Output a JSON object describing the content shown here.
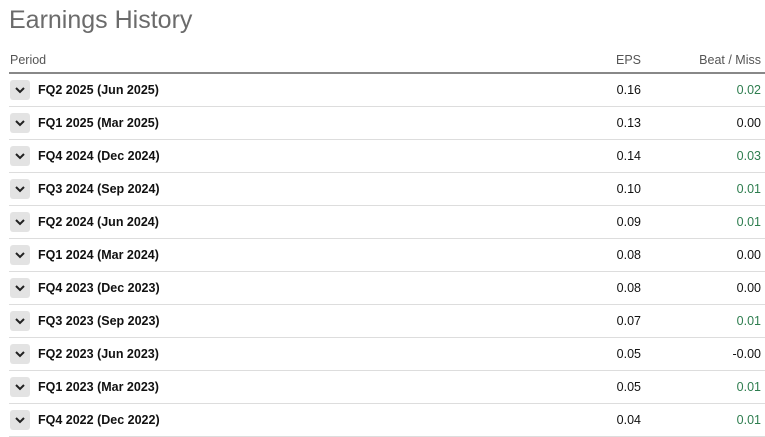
{
  "title": "Earnings History",
  "columns": {
    "period": "Period",
    "eps": "EPS",
    "beat_miss": "Beat / Miss"
  },
  "colors": {
    "positive": "#2e7d4f",
    "neutral": "#111111"
  },
  "rows": [
    {
      "period": "FQ2 2025 (Jun 2025)",
      "eps": "0.16",
      "beat_miss": "0.02",
      "positive": true
    },
    {
      "period": "FQ1 2025 (Mar 2025)",
      "eps": "0.13",
      "beat_miss": "0.00",
      "positive": false
    },
    {
      "period": "FQ4 2024 (Dec 2024)",
      "eps": "0.14",
      "beat_miss": "0.03",
      "positive": true
    },
    {
      "period": "FQ3 2024 (Sep 2024)",
      "eps": "0.10",
      "beat_miss": "0.01",
      "positive": true
    },
    {
      "period": "FQ2 2024 (Jun 2024)",
      "eps": "0.09",
      "beat_miss": "0.01",
      "positive": true
    },
    {
      "period": "FQ1 2024 (Mar 2024)",
      "eps": "0.08",
      "beat_miss": "0.00",
      "positive": false
    },
    {
      "period": "FQ4 2023 (Dec 2023)",
      "eps": "0.08",
      "beat_miss": "0.00",
      "positive": false
    },
    {
      "period": "FQ3 2023 (Sep 2023)",
      "eps": "0.07",
      "beat_miss": "0.01",
      "positive": true
    },
    {
      "period": "FQ2 2023 (Jun 2023)",
      "eps": "0.05",
      "beat_miss": "-0.00",
      "positive": false
    },
    {
      "period": "FQ1 2023 (Mar 2023)",
      "eps": "0.05",
      "beat_miss": "0.01",
      "positive": true
    },
    {
      "period": "FQ4 2022 (Dec 2022)",
      "eps": "0.04",
      "beat_miss": "0.01",
      "positive": true
    }
  ]
}
